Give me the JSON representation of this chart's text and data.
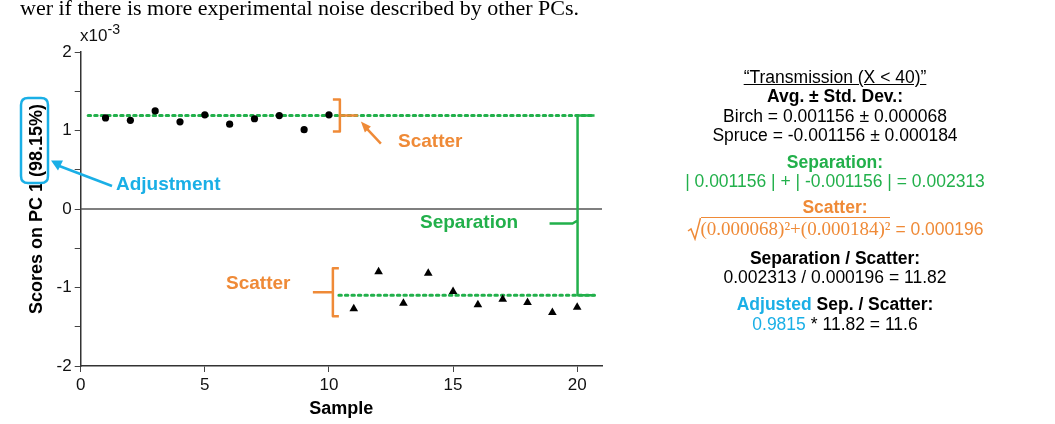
{
  "chart_data": {
    "type": "scatter",
    "xlabel": "Sample",
    "ylabel": "Scores on PC 1 (98.15%)",
    "xlim": [
      0,
      21
    ],
    "xticks": [
      0,
      5,
      10,
      15,
      20
    ],
    "ylim": [
      -2,
      2
    ],
    "yticks": [
      -2,
      {
        "value": -1.5,
        "label": null
      },
      -1,
      {
        "value": -0.5,
        "label": null
      },
      0,
      {
        "value": 0.5,
        "label": null
      },
      1,
      {
        "value": 1.5,
        "label": null
      },
      2
    ],
    "grid": false,
    "legend": false,
    "series": [
      {
        "type": "scatter",
        "marker": "circle",
        "color": "#000000",
        "x": [
          1,
          2,
          3,
          4,
          5,
          6,
          7,
          8,
          9,
          10
        ],
        "values": [
          1.16,
          1.13,
          1.25,
          1.11,
          1.2,
          1.08,
          1.15,
          1.19,
          1.01,
          1.2
        ]
      },
      {
        "type": "scatter",
        "marker": "triangle",
        "color": "#000000",
        "x": [
          11,
          12,
          13,
          14,
          15,
          16,
          17,
          18,
          19,
          20
        ],
        "values": [
          -1.27,
          -0.8,
          -1.2,
          -0.82,
          -1.05,
          -1.22,
          -1.15,
          -1.19,
          -1.32,
          -1.25
        ]
      },
      {
        "type": "line",
        "marker": "none",
        "line_style": "dotted",
        "color": "#22b04b",
        "x": [
          0.3,
          20.7
        ],
        "values": [
          1.19,
          1.19
        ]
      },
      {
        "type": "line",
        "marker": "none",
        "line_style": "dotted",
        "color": "#22b04b",
        "x": [
          10.4,
          20.7
        ],
        "values": [
          -1.1,
          -1.1
        ]
      }
    ],
    "ref_lines": [
      {
        "axis": "y",
        "value": 0,
        "color": "#555555"
      }
    ],
    "annotations": [
      "wer if there is more experimental noise described by other PCs.",
      "x10$^{-3}$",
      "Scatter",
      "Adjustment",
      "Separation",
      "Scatter",
      "“Transmission (X < 40)”",
      "Avg. ± Std. Dev.:",
      "Birch = 0.001156 ± 0.000068",
      "Spruce = -0.001156 ± 0.000184",
      "Separation:",
      "| 0.001156 | + | -0.001156 | = 0.002313",
      "Scatter:",
      "(0.000068)²+(0.000184)²",
      "= 0.000196",
      "Separation / Scatter:",
      "0.002313 / 0.000196 = 11.82",
      "Adjusted",
      "Sep. / Scatter:",
      "0.9815",
      "* 11.82 = 11.6"
    ]
  }
}
